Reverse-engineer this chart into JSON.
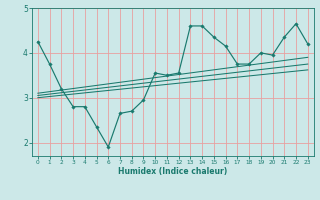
{
  "xlabel": "Humidex (Indice chaleur)",
  "bg_color": "#cce8e8",
  "line_color": "#1a7a6e",
  "grid_color": "#e8a0a0",
  "xlim": [
    -0.5,
    23.5
  ],
  "ylim": [
    1.7,
    5.0
  ],
  "xticks": [
    0,
    1,
    2,
    3,
    4,
    5,
    6,
    7,
    8,
    9,
    10,
    11,
    12,
    13,
    14,
    15,
    16,
    17,
    18,
    19,
    20,
    21,
    22,
    23
  ],
  "yticks": [
    2,
    3,
    4,
    5
  ],
  "main_x": [
    0,
    1,
    2,
    3,
    4,
    5,
    6,
    7,
    8,
    9,
    10,
    11,
    12,
    13,
    14,
    15,
    16,
    17,
    18,
    19,
    20,
    21,
    22,
    23
  ],
  "main_y": [
    4.25,
    3.75,
    3.2,
    2.8,
    2.8,
    2.35,
    1.9,
    2.65,
    2.7,
    2.95,
    3.55,
    3.5,
    3.55,
    4.6,
    4.6,
    4.35,
    4.15,
    3.75,
    3.75,
    4.0,
    3.95,
    4.35,
    4.65,
    4.2
  ],
  "trend1_x": [
    0,
    23
  ],
  "trend1_y": [
    3.05,
    3.75
  ],
  "trend2_x": [
    0,
    23
  ],
  "trend2_y": [
    3.1,
    3.9
  ],
  "trend3_x": [
    0,
    23
  ],
  "trend3_y": [
    3.0,
    3.62
  ]
}
